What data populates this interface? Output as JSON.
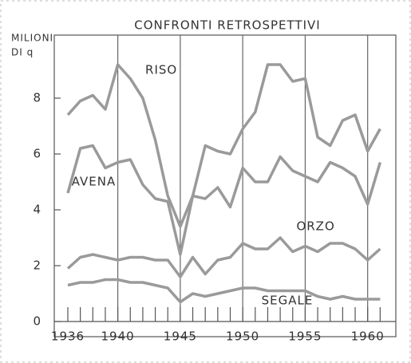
{
  "chart_data": {
    "type": "line",
    "title": "CONFRONTI RETROSPETTIVI",
    "y_label": [
      "MILIONI",
      "DI q"
    ],
    "x": [
      1936,
      1937,
      1938,
      1939,
      1940,
      1941,
      1942,
      1943,
      1944,
      1945,
      1946,
      1947,
      1948,
      1949,
      1950,
      1951,
      1952,
      1953,
      1954,
      1955,
      1956,
      1957,
      1958,
      1959,
      1960,
      1961
    ],
    "series": [
      {
        "name": "RISO",
        "color": "#9a9a9a",
        "values": [
          7.4,
          7.9,
          8.1,
          7.6,
          9.2,
          8.7,
          8.0,
          6.5,
          4.5,
          3.4,
          4.5,
          6.3,
          6.1,
          6.0,
          6.9,
          7.5,
          9.2,
          9.2,
          8.6,
          8.7,
          6.6,
          6.3,
          7.2,
          7.4,
          6.1,
          6.9
        ]
      },
      {
        "name": "AVENA",
        "color": "#9a9a9a",
        "values": [
          4.6,
          6.2,
          6.3,
          5.5,
          5.7,
          5.8,
          4.9,
          4.4,
          4.3,
          2.4,
          4.5,
          4.4,
          4.8,
          4.1,
          5.5,
          5.0,
          5.0,
          5.9,
          5.4,
          5.2,
          5.0,
          5.7,
          5.5,
          5.2,
          4.2,
          5.7
        ]
      },
      {
        "name": "ORZO",
        "color": "#9a9a9a",
        "values": [
          1.9,
          2.3,
          2.4,
          2.3,
          2.2,
          2.3,
          2.3,
          2.2,
          2.2,
          1.6,
          2.3,
          1.7,
          2.2,
          2.3,
          2.8,
          2.6,
          2.6,
          3.0,
          2.5,
          2.7,
          2.5,
          2.8,
          2.8,
          2.6,
          2.2,
          2.6
        ]
      },
      {
        "name": "SEGALE",
        "color": "#9a9a9a",
        "values": [
          1.3,
          1.4,
          1.4,
          1.5,
          1.5,
          1.4,
          1.4,
          1.3,
          1.2,
          0.7,
          1.0,
          0.9,
          1.0,
          1.1,
          1.2,
          1.2,
          1.1,
          1.1,
          1.1,
          1.1,
          0.9,
          0.8,
          0.9,
          0.8,
          0.8,
          0.8
        ]
      }
    ],
    "xlim": [
      1936,
      1962
    ],
    "xticks": [
      1936,
      1940,
      1945,
      1950,
      1955,
      1960
    ],
    "ylim": [
      0,
      10
    ],
    "yticks": [
      0,
      2,
      4,
      6,
      8
    ],
    "grid": true
  }
}
